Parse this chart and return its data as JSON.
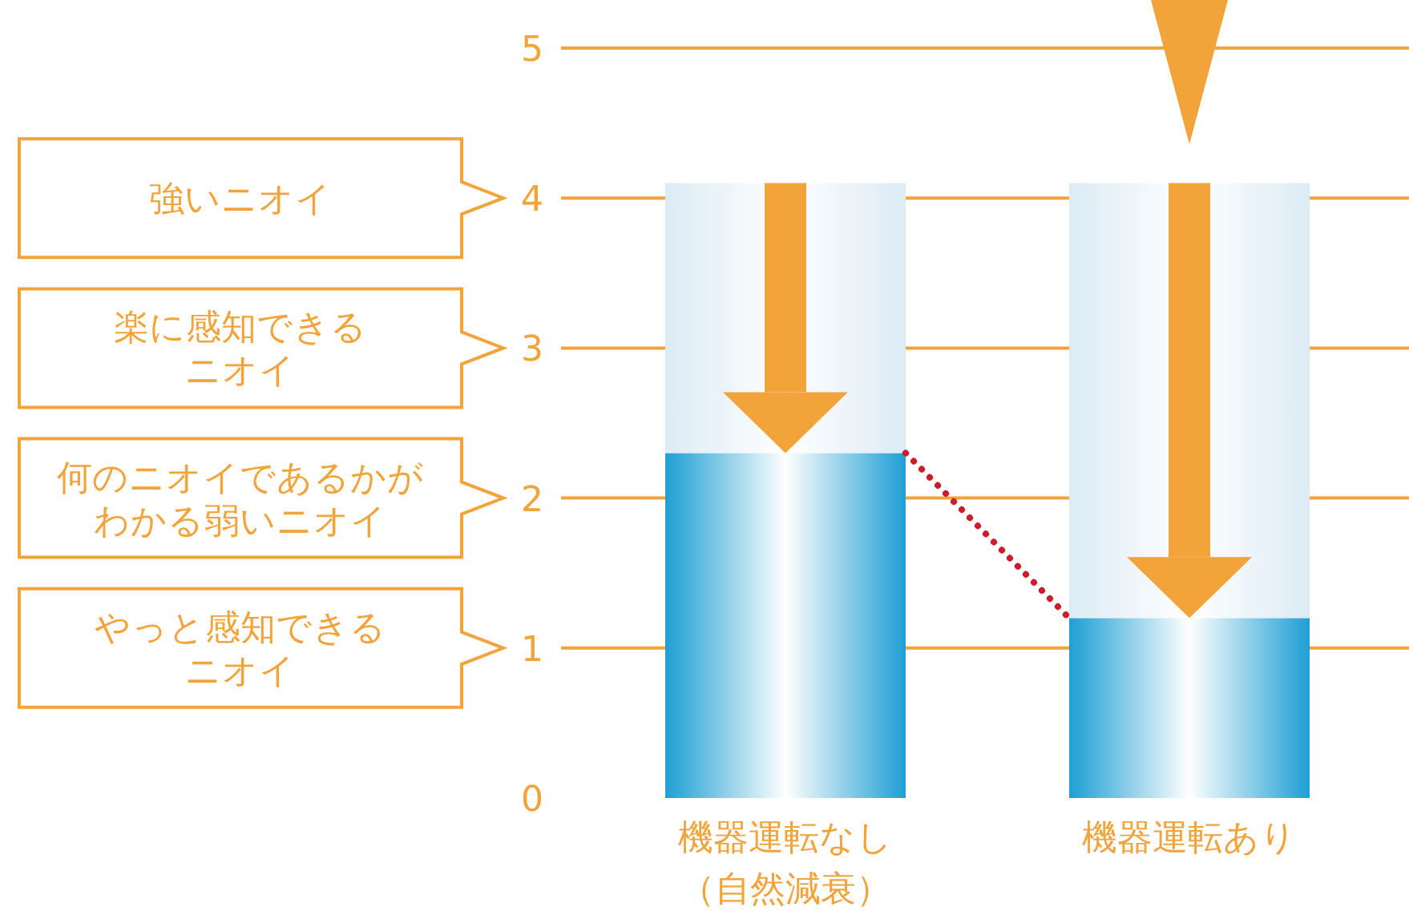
{
  "chart_data": {
    "type": "bar",
    "stacked": true,
    "categories": [
      "機器運転なし（自然減衰）",
      "機器運転あり"
    ],
    "series": [
      {
        "color": "#1e9fd4",
        "values": [
          2.3,
          1.2
        ]
      },
      {
        "color": "#dcebf5",
        "values": [
          1.8,
          2.9
        ]
      }
    ],
    "ylim": [
      0,
      5
    ],
    "yticks": [
      0,
      1,
      2,
      3,
      4,
      5
    ],
    "grid": "y",
    "annotations": [
      "強いニオイ",
      "楽に感知できるニオイ",
      "何のニオイであるかがわかる弱いニオイ",
      "やっと感知できるニオイ"
    ]
  }
}
